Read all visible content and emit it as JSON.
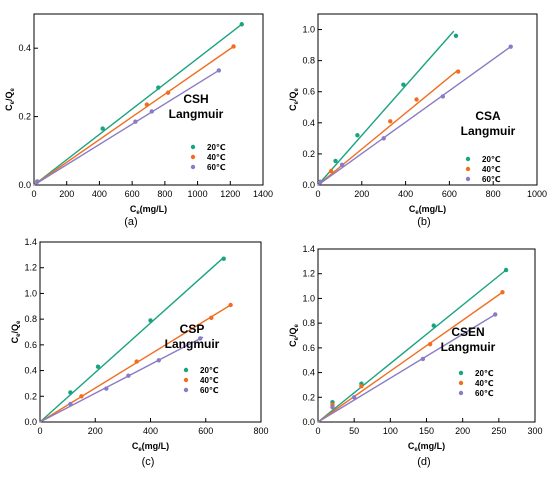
{
  "series_styles": {
    "20": {
      "color": "#1aa37f"
    },
    "40": {
      "color": "#f26d1f"
    },
    "60": {
      "color": "#8a7cc4"
    }
  },
  "chart_data": [
    {
      "type": "scatter",
      "panel": "(a)",
      "title": "CSH",
      "subtitle": "Langmuir",
      "legend_position": "right-middle",
      "xlabel_main": "C",
      "xlabel_sub": "e",
      "xlabel_unit": "(mg/L)",
      "ylabel_num": "C",
      "ylabel_num_sub": "e",
      "ylabel_sep": "/",
      "ylabel_den": "Q",
      "ylabel_den_sub": "e",
      "xlim": [
        0,
        1400
      ],
      "ylim": [
        0,
        0.5
      ],
      "xticks": [
        0,
        200,
        400,
        600,
        800,
        1000,
        1200,
        1400
      ],
      "yticks": [
        0.0,
        0.2,
        0.4
      ],
      "ytick_labels": [
        "0.0",
        "0.2",
        "0.4"
      ],
      "series": [
        {
          "name": "20℃",
          "key": "20",
          "x": [
            20,
            420,
            760,
            1270
          ],
          "y": [
            0.01,
            0.165,
            0.285,
            0.47
          ],
          "fit": [
            [
              0,
              0.0
            ],
            [
              1270,
              0.47
            ]
          ]
        },
        {
          "name": "40℃",
          "key": "40",
          "x": [
            20,
            690,
            820,
            1220
          ],
          "y": [
            0.01,
            0.235,
            0.27,
            0.405
          ],
          "fit": [
            [
              0,
              0.0
            ],
            [
              1220,
              0.405
            ]
          ]
        },
        {
          "name": "60℃",
          "key": "60",
          "x": [
            20,
            620,
            720,
            1130
          ],
          "y": [
            0.01,
            0.185,
            0.215,
            0.335
          ],
          "fit": [
            [
              0,
              0.0
            ],
            [
              1130,
              0.335
            ]
          ]
        }
      ]
    },
    {
      "type": "scatter",
      "panel": "(b)",
      "title": "CSA",
      "subtitle": "Langmuir",
      "legend_position": "right-bottom",
      "xlabel_main": "C",
      "xlabel_sub": "e",
      "xlabel_unit": "(mg/L)",
      "ylabel_num": "C",
      "ylabel_num_sub": "e",
      "ylabel_sep": "/",
      "ylabel_den": "Q",
      "ylabel_den_sub": "e",
      "xlim": [
        0,
        1000
      ],
      "ylim": [
        0,
        1.1
      ],
      "xticks": [
        0,
        200,
        400,
        600,
        800,
        1000
      ],
      "yticks": [
        0.0,
        0.2,
        0.4,
        0.6,
        0.8,
        1.0
      ],
      "ytick_labels": [
        "0.0",
        "0.2",
        "0.4",
        "0.6",
        "0.8",
        "1.0"
      ],
      "series": [
        {
          "name": "20℃",
          "key": "20",
          "x": [
            10,
            80,
            180,
            390,
            630
          ],
          "y": [
            0.02,
            0.155,
            0.32,
            0.645,
            0.96
          ],
          "fit": [
            [
              0,
              0.0
            ],
            [
              620,
              0.99
            ]
          ]
        },
        {
          "name": "40℃",
          "key": "40",
          "x": [
            10,
            60,
            330,
            450,
            640
          ],
          "y": [
            0.02,
            0.09,
            0.41,
            0.55,
            0.73
          ],
          "fit": [
            [
              0,
              0.0
            ],
            [
              640,
              0.74
            ]
          ]
        },
        {
          "name": "60℃",
          "key": "60",
          "x": [
            10,
            110,
            300,
            570,
            880
          ],
          "y": [
            0.02,
            0.13,
            0.3,
            0.57,
            0.89
          ],
          "fit": [
            [
              0,
              0.0
            ],
            [
              880,
              0.89
            ]
          ]
        }
      ]
    },
    {
      "type": "scatter",
      "panel": "(c)",
      "title": "CSP",
      "subtitle": "Langmuir",
      "legend_position": "right-bottom",
      "xlabel_main": "C",
      "xlabel_sub": "e",
      "xlabel_unit": "(mg/L)",
      "ylabel_num": "C",
      "ylabel_num_sub": "e",
      "ylabel_sep": "/",
      "ylabel_den": "Q",
      "ylabel_den_sub": "e",
      "xlim": [
        0,
        800
      ],
      "ylim": [
        0,
        1.4
      ],
      "xticks": [
        0,
        200,
        400,
        600,
        800
      ],
      "yticks": [
        0.0,
        0.2,
        0.4,
        0.6,
        0.8,
        1.0,
        1.2,
        1.4
      ],
      "ytick_labels": [
        "0.0",
        "0.2",
        "0.4",
        "0.6",
        "0.8",
        "1.0",
        "1.2",
        "1.4"
      ],
      "series": [
        {
          "name": "20℃",
          "key": "20",
          "x": [
            110,
            210,
            400,
            665
          ],
          "y": [
            0.23,
            0.43,
            0.79,
            1.27
          ],
          "fit": [
            [
              0,
              0.0
            ],
            [
              665,
              1.28
            ]
          ]
        },
        {
          "name": "40℃",
          "key": "40",
          "x": [
            150,
            350,
            620,
            690
          ],
          "y": [
            0.2,
            0.47,
            0.81,
            0.91
          ],
          "fit": [
            [
              0,
              0.0
            ],
            [
              690,
              0.91
            ]
          ]
        },
        {
          "name": "60℃",
          "key": "60",
          "x": [
            110,
            240,
            320,
            430,
            580
          ],
          "y": [
            0.14,
            0.26,
            0.36,
            0.48,
            0.65
          ],
          "fit": [
            [
              0,
              0.0
            ],
            [
              590,
              0.66
            ]
          ]
        }
      ]
    },
    {
      "type": "scatter",
      "panel": "(d)",
      "title": "CSEN",
      "subtitle": "Langmuir",
      "legend_position": "right-bottom",
      "xlabel_main": "C",
      "xlabel_sub": "e",
      "xlabel_unit": "(mg/L)",
      "ylabel_num": "C",
      "ylabel_num_sub": "e",
      "ylabel_sep": "/",
      "ylabel_den": "Q",
      "ylabel_den_sub": "e",
      "xlim": [
        0,
        300
      ],
      "ylim": [
        0,
        1.4
      ],
      "xticks": [
        0,
        50,
        100,
        150,
        200,
        250,
        300
      ],
      "yticks": [
        0.0,
        0.2,
        0.4,
        0.6,
        0.8,
        1.0,
        1.2,
        1.4
      ],
      "ytick_labels": [
        "0.0",
        "0.2",
        "0.4",
        "0.6",
        "0.8",
        "1.0",
        "1.2",
        "1.4"
      ],
      "series": [
        {
          "name": "20℃",
          "key": "20",
          "x": [
            20,
            60,
            160,
            260
          ],
          "y": [
            0.16,
            0.31,
            0.78,
            1.23
          ],
          "fit": [
            [
              0,
              0.0
            ],
            [
              260,
              1.23
            ]
          ]
        },
        {
          "name": "40℃",
          "key": "40",
          "x": [
            20,
            60,
            155,
            255
          ],
          "y": [
            0.14,
            0.29,
            0.63,
            1.05
          ],
          "fit": [
            [
              0,
              0.0
            ],
            [
              255,
              1.05
            ]
          ]
        },
        {
          "name": "60℃",
          "key": "60",
          "x": [
            20,
            50,
            145,
            245
          ],
          "y": [
            0.12,
            0.2,
            0.51,
            0.87
          ],
          "fit": [
            [
              0,
              0.0
            ],
            [
              245,
              0.87
            ]
          ]
        }
      ]
    }
  ]
}
